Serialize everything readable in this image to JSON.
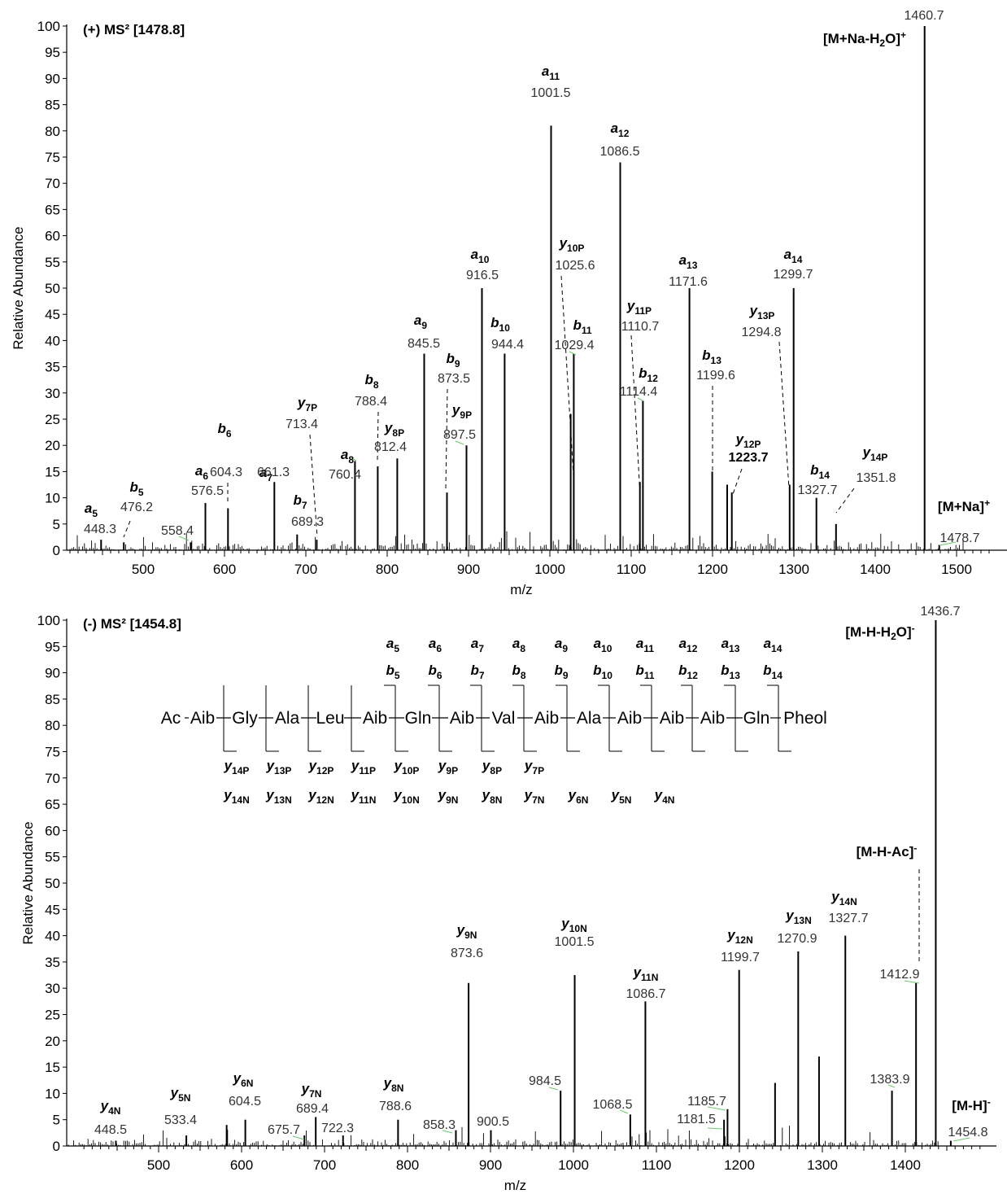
{
  "chart_data": [
    {
      "type": "bar",
      "title": "(+) MS² [1478.8]",
      "xlabel": "m/z",
      "ylabel": "Relative Abundance",
      "xlim": [
        410,
        1545
      ],
      "ylim": [
        0,
        100
      ],
      "xticks": [
        "500",
        "600",
        "700",
        "800",
        "900",
        "1000",
        "1100",
        "1200",
        "1300",
        "1400",
        "1500"
      ],
      "yticks": [
        "0",
        "5",
        "10",
        "15",
        "20",
        "25",
        "30",
        "35",
        "40",
        "45",
        "50",
        "55",
        "60",
        "65",
        "70",
        "75",
        "80",
        "85",
        "90",
        "95",
        "100"
      ],
      "peaks": [
        {
          "mz": 448.3,
          "i": 2
        },
        {
          "mz": 476.2,
          "i": 1.5
        },
        {
          "mz": 558.4,
          "i": 1.5
        },
        {
          "mz": 576.5,
          "i": 9
        },
        {
          "mz": 604.3,
          "i": 8
        },
        {
          "mz": 661.3,
          "i": 13
        },
        {
          "mz": 689.3,
          "i": 3
        },
        {
          "mz": 713.4,
          "i": 2
        },
        {
          "mz": 760.4,
          "i": 17
        },
        {
          "mz": 788.4,
          "i": 16
        },
        {
          "mz": 812.4,
          "i": 17.5
        },
        {
          "mz": 845.5,
          "i": 37.5
        },
        {
          "mz": 873.5,
          "i": 11
        },
        {
          "mz": 897.5,
          "i": 20
        },
        {
          "mz": 916.5,
          "i": 50
        },
        {
          "mz": 944.4,
          "i": 37.5
        },
        {
          "mz": 1001.5,
          "i": 81
        },
        {
          "mz": 1025.6,
          "i": 26
        },
        {
          "mz": 1029.4,
          "i": 37.5
        },
        {
          "mz": 1086.5,
          "i": 74
        },
        {
          "mz": 1110.7,
          "i": 13
        },
        {
          "mz": 1114.4,
          "i": 28.5
        },
        {
          "mz": 1171.6,
          "i": 50
        },
        {
          "mz": 1199.6,
          "i": 15
        },
        {
          "mz": 1218.0,
          "i": 12.5
        },
        {
          "mz": 1223.7,
          "i": 11
        },
        {
          "mz": 1294.8,
          "i": 12.5
        },
        {
          "mz": 1299.7,
          "i": 50
        },
        {
          "mz": 1327.7,
          "i": 10
        },
        {
          "mz": 1351.8,
          "i": 5
        },
        {
          "mz": 1460.7,
          "i": 100
        },
        {
          "mz": 1478.7,
          "i": 1
        }
      ],
      "labels": [
        {
          "ion": "a5",
          "mz": "448.3"
        },
        {
          "ion": "b5",
          "mz": "476.2"
        },
        {
          "ion": "",
          "mz": "558.4"
        },
        {
          "ion": "a6",
          "mz": "576.5"
        },
        {
          "ion": "b6",
          "mz": "604.3"
        },
        {
          "ion": "a7",
          "mz": "661.3"
        },
        {
          "ion": "b7",
          "mz": "689.3"
        },
        {
          "ion": "y7P",
          "mz": "713.4"
        },
        {
          "ion": "a8",
          "mz": "760.4"
        },
        {
          "ion": "b8",
          "mz": "788.4"
        },
        {
          "ion": "y8P",
          "mz": "812.4"
        },
        {
          "ion": "a9",
          "mz": "845.5"
        },
        {
          "ion": "b9",
          "mz": "873.5"
        },
        {
          "ion": "y9P",
          "mz": "897.5"
        },
        {
          "ion": "a10",
          "mz": "916.5"
        },
        {
          "ion": "b10",
          "mz": "944.4"
        },
        {
          "ion": "a11",
          "mz": "1001.5"
        },
        {
          "ion": "y10P",
          "mz": "1025.6"
        },
        {
          "ion": "b11",
          "mz": "1029.4"
        },
        {
          "ion": "a12",
          "mz": "1086.5"
        },
        {
          "ion": "y11P",
          "mz": "1110.7"
        },
        {
          "ion": "b12",
          "mz": "1114.4"
        },
        {
          "ion": "a13",
          "mz": "1171.6"
        },
        {
          "ion": "b13",
          "mz": "1199.6"
        },
        {
          "ion": "y12P",
          "mz": "1223.7"
        },
        {
          "ion": "y13P",
          "mz": "1294.8"
        },
        {
          "ion": "a14",
          "mz": "1299.7"
        },
        {
          "ion": "b14",
          "mz": "1327.7"
        },
        {
          "ion": "y14P",
          "mz": "1351.8"
        },
        {
          "ion": "[M+Na-H2O]+",
          "mz": "1460.7"
        },
        {
          "ion": "[M+Na]+",
          "mz": "1478.7"
        }
      ]
    },
    {
      "type": "bar",
      "title": "(-) MS² [1454.8]",
      "xlabel": "m/z",
      "ylabel": "Relative Abundance",
      "xlim": [
        410,
        1490
      ],
      "ylim": [
        0,
        100
      ],
      "xticks": [
        "500",
        "600",
        "700",
        "800",
        "900",
        "1000",
        "1100",
        "1200",
        "1300",
        "1400"
      ],
      "yticks": [
        "0",
        "5",
        "10",
        "15",
        "20",
        "25",
        "30",
        "35",
        "40",
        "45",
        "50",
        "55",
        "60",
        "65",
        "70",
        "75",
        "80",
        "85",
        "90",
        "95",
        "100"
      ],
      "peaks": [
        {
          "mz": 448.5,
          "i": 1
        },
        {
          "mz": 533.4,
          "i": 2
        },
        {
          "mz": 582.0,
          "i": 4
        },
        {
          "mz": 604.5,
          "i": 5
        },
        {
          "mz": 675.7,
          "i": 2
        },
        {
          "mz": 689.4,
          "i": 5.5
        },
        {
          "mz": 722.3,
          "i": 2
        },
        {
          "mz": 788.6,
          "i": 5
        },
        {
          "mz": 858.3,
          "i": 3
        },
        {
          "mz": 873.6,
          "i": 31
        },
        {
          "mz": 900.5,
          "i": 3
        },
        {
          "mz": 984.5,
          "i": 10.5
        },
        {
          "mz": 1001.5,
          "i": 32.5
        },
        {
          "mz": 1068.5,
          "i": 6
        },
        {
          "mz": 1086.7,
          "i": 27.5
        },
        {
          "mz": 1181.5,
          "i": 5
        },
        {
          "mz": 1185.7,
          "i": 7
        },
        {
          "mz": 1199.7,
          "i": 33.5
        },
        {
          "mz": 1243.0,
          "i": 12
        },
        {
          "mz": 1270.9,
          "i": 37
        },
        {
          "mz": 1296.0,
          "i": 17
        },
        {
          "mz": 1327.7,
          "i": 40
        },
        {
          "mz": 1383.9,
          "i": 10.5
        },
        {
          "mz": 1412.9,
          "i": 31
        },
        {
          "mz": 1436.7,
          "i": 100
        },
        {
          "mz": 1454.8,
          "i": 1
        }
      ],
      "labels": [
        {
          "ion": "y4N",
          "mz": "448.5"
        },
        {
          "ion": "y5N",
          "mz": "533.4"
        },
        {
          "ion": "y6N",
          "mz": "604.5"
        },
        {
          "ion": "",
          "mz": "675.7"
        },
        {
          "ion": "y7N",
          "mz": "689.4"
        },
        {
          "ion": "",
          "mz": "722.3"
        },
        {
          "ion": "y8N",
          "mz": "788.6"
        },
        {
          "ion": "",
          "mz": "858.3"
        },
        {
          "ion": "y9N",
          "mz": "873.6"
        },
        {
          "ion": "",
          "mz": "900.5"
        },
        {
          "ion": "",
          "mz": "984.5"
        },
        {
          "ion": "y10N",
          "mz": "1001.5"
        },
        {
          "ion": "",
          "mz": "1068.5"
        },
        {
          "ion": "y11N",
          "mz": "1086.7"
        },
        {
          "ion": "",
          "mz": "1181.5"
        },
        {
          "ion": "",
          "mz": "1185.7"
        },
        {
          "ion": "y12N",
          "mz": "1199.7"
        },
        {
          "ion": "y13N",
          "mz": "1270.9"
        },
        {
          "ion": "y14N",
          "mz": "1327.7"
        },
        {
          "ion": "",
          "mz": "1383.9"
        },
        {
          "ion": "[M-H-Ac]-",
          "mz": "1412.9"
        },
        {
          "ion": "[M-H-H2O]-",
          "mz": "1436.7"
        },
        {
          "ion": "[M-H]-",
          "mz": "1454.8"
        }
      ]
    }
  ],
  "sequence": {
    "residues": [
      "Ac",
      "Aib",
      "Gly",
      "Ala",
      "Leu",
      "Aib",
      "Gln",
      "Aib",
      "Val",
      "Aib",
      "Ala",
      "Aib",
      "Aib",
      "Aib",
      "Gln",
      "Pheol"
    ],
    "a_ions": [
      "a5",
      "a6",
      "a7",
      "a8",
      "a9",
      "a10",
      "a11",
      "a12",
      "a13",
      "a14"
    ],
    "b_ions": [
      "b5",
      "b6",
      "b7",
      "b8",
      "b9",
      "b10",
      "b11",
      "b12",
      "b13",
      "b14"
    ],
    "yP_ions": [
      "y14P",
      "y13P",
      "y12P",
      "y11P",
      "y10P",
      "y9P",
      "y8P",
      "y7P"
    ],
    "yN_ions": [
      "y14N",
      "y13N",
      "y12N",
      "y11N",
      "y10N",
      "y9N",
      "y8N",
      "y7N",
      "y6N",
      "y5N",
      "y4N"
    ]
  }
}
